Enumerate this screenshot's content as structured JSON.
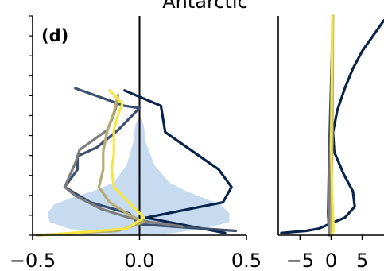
{
  "figure": {
    "title": "Antarctic",
    "panel_label": "(d)"
  },
  "chart_data": [
    {
      "type": "line",
      "panel": "left",
      "xlim": [
        -0.5,
        0.5
      ],
      "xticks": [
        -0.5,
        0.0,
        0.5
      ],
      "xtick_labels": [
        "−0.5",
        "0.0",
        "0.5"
      ],
      "ylim": [
        0,
        1
      ],
      "ytick_count": 12,
      "grid": false,
      "reference_line_x": 0.0,
      "spread_shading": {
        "color": "#c6dbef",
        "points": [
          [
            0.0,
            0.0
          ],
          [
            0.16,
            0.01
          ],
          [
            0.3,
            0.03
          ],
          [
            0.42,
            0.06
          ],
          [
            0.42,
            0.1
          ],
          [
            0.38,
            0.14
          ],
          [
            0.3,
            0.17
          ],
          [
            0.22,
            0.2
          ],
          [
            0.14,
            0.24
          ],
          [
            0.07,
            0.32
          ],
          [
            0.03,
            0.42
          ],
          [
            0.02,
            0.5
          ],
          [
            0.0,
            0.55
          ],
          [
            -0.02,
            0.5
          ],
          [
            -0.03,
            0.42
          ],
          [
            -0.06,
            0.32
          ],
          [
            -0.12,
            0.24
          ],
          [
            -0.22,
            0.2
          ],
          [
            -0.32,
            0.17
          ],
          [
            -0.4,
            0.14
          ],
          [
            -0.43,
            0.1
          ],
          [
            -0.42,
            0.06
          ],
          [
            -0.33,
            0.03
          ],
          [
            -0.18,
            0.01
          ],
          [
            0.0,
            0.0
          ]
        ]
      },
      "series": [
        {
          "color": "#08244a",
          "points": [
            [
              -0.07,
              0.66
            ],
            [
              0.1,
              0.59
            ],
            [
              0.12,
              0.47
            ],
            [
              0.37,
              0.3
            ],
            [
              0.43,
              0.22
            ],
            [
              0.39,
              0.15
            ],
            [
              0.03,
              0.08
            ],
            [
              0.4,
              0.01
            ]
          ]
        },
        {
          "color": "#3d4f6e",
          "points": [
            [
              -0.3,
              0.67
            ],
            [
              -0.07,
              0.59
            ],
            [
              0.0,
              0.58
            ],
            [
              -0.1,
              0.48
            ],
            [
              -0.2,
              0.4
            ],
            [
              -0.29,
              0.36
            ],
            [
              -0.29,
              0.3
            ],
            [
              -0.35,
              0.22
            ],
            [
              -0.23,
              0.15
            ],
            [
              -0.05,
              0.1
            ],
            [
              0.0,
              0.05
            ],
            [
              0.45,
              0.02
            ]
          ]
        },
        {
          "color": "#7d7d7d",
          "points": [
            [
              -0.1,
              0.62
            ],
            [
              -0.12,
              0.55
            ],
            [
              -0.15,
              0.48
            ],
            [
              -0.28,
              0.39
            ],
            [
              -0.3,
              0.33
            ],
            [
              -0.35,
              0.22
            ],
            [
              -0.3,
              0.18
            ],
            [
              -0.18,
              0.12
            ],
            [
              -0.05,
              0.08
            ],
            [
              0.05,
              0.06
            ],
            [
              0.2,
              0.04
            ]
          ]
        },
        {
          "color": "#b5ad70",
          "points": [
            [
              -0.1,
              0.64
            ],
            [
              -0.12,
              0.56
            ],
            [
              -0.15,
              0.48
            ],
            [
              -0.17,
              0.38
            ],
            [
              -0.17,
              0.3
            ],
            [
              -0.19,
              0.22
            ],
            [
              -0.14,
              0.15
            ],
            [
              -0.06,
              0.1
            ],
            [
              0.02,
              0.06
            ],
            [
              -0.1,
              0.02
            ],
            [
              -0.48,
              0.0
            ]
          ]
        },
        {
          "color": "#f5e642",
          "points": [
            [
              -0.14,
              0.66
            ],
            [
              -0.08,
              0.6
            ],
            [
              -0.1,
              0.55
            ],
            [
              -0.12,
              0.48
            ],
            [
              -0.12,
              0.37
            ],
            [
              -0.13,
              0.3
            ],
            [
              -0.12,
              0.22
            ],
            [
              -0.05,
              0.15
            ],
            [
              0.02,
              0.08
            ],
            [
              -0.06,
              0.03
            ],
            [
              -0.45,
              0.0
            ]
          ]
        }
      ]
    },
    {
      "type": "line",
      "panel": "right",
      "xlim": [
        -8.5,
        8.5
      ],
      "xticks": [
        -5,
        0,
        5
      ],
      "xtick_labels": [
        "−5",
        "0",
        "5"
      ],
      "ylim": [
        0,
        1
      ],
      "grid": false,
      "series": [
        {
          "color": "#08244a",
          "points": [
            [
              8.5,
              0.98
            ],
            [
              7.0,
              0.92
            ],
            [
              5.0,
              0.84
            ],
            [
              3.5,
              0.76
            ],
            [
              2.2,
              0.67
            ],
            [
              1.0,
              0.57
            ],
            [
              0.3,
              0.47
            ],
            [
              0.5,
              0.38
            ],
            [
              2.0,
              0.28
            ],
            [
              3.5,
              0.2
            ],
            [
              3.8,
              0.13
            ],
            [
              2.2,
              0.08
            ],
            [
              0.5,
              0.06
            ],
            [
              -2.0,
              0.03
            ],
            [
              -4.0,
              0.02
            ],
            [
              -8.0,
              0.01
            ]
          ]
        },
        {
          "color": "#3d4f6e",
          "points": [
            [
              0.3,
              1.0
            ],
            [
              0.0,
              0.7
            ],
            [
              -0.3,
              0.4
            ],
            [
              -0.5,
              0.1
            ],
            [
              -0.3,
              0.0
            ]
          ]
        },
        {
          "color": "#7d7d7d",
          "points": [
            [
              0.2,
              1.0
            ],
            [
              0.1,
              0.6
            ],
            [
              -0.2,
              0.3
            ],
            [
              -0.3,
              0.0
            ]
          ]
        },
        {
          "color": "#b5ad70",
          "points": [
            [
              0.3,
              1.0
            ],
            [
              0.2,
              0.5
            ],
            [
              0.1,
              0.2
            ],
            [
              0.0,
              0.0
            ]
          ]
        },
        {
          "color": "#f5e642",
          "points": [
            [
              0.2,
              1.0
            ],
            [
              0.1,
              0.7
            ],
            [
              0.0,
              0.4
            ],
            [
              0.2,
              0.15
            ],
            [
              0.4,
              0.02
            ],
            [
              0.0,
              0.0
            ]
          ]
        }
      ]
    }
  ]
}
